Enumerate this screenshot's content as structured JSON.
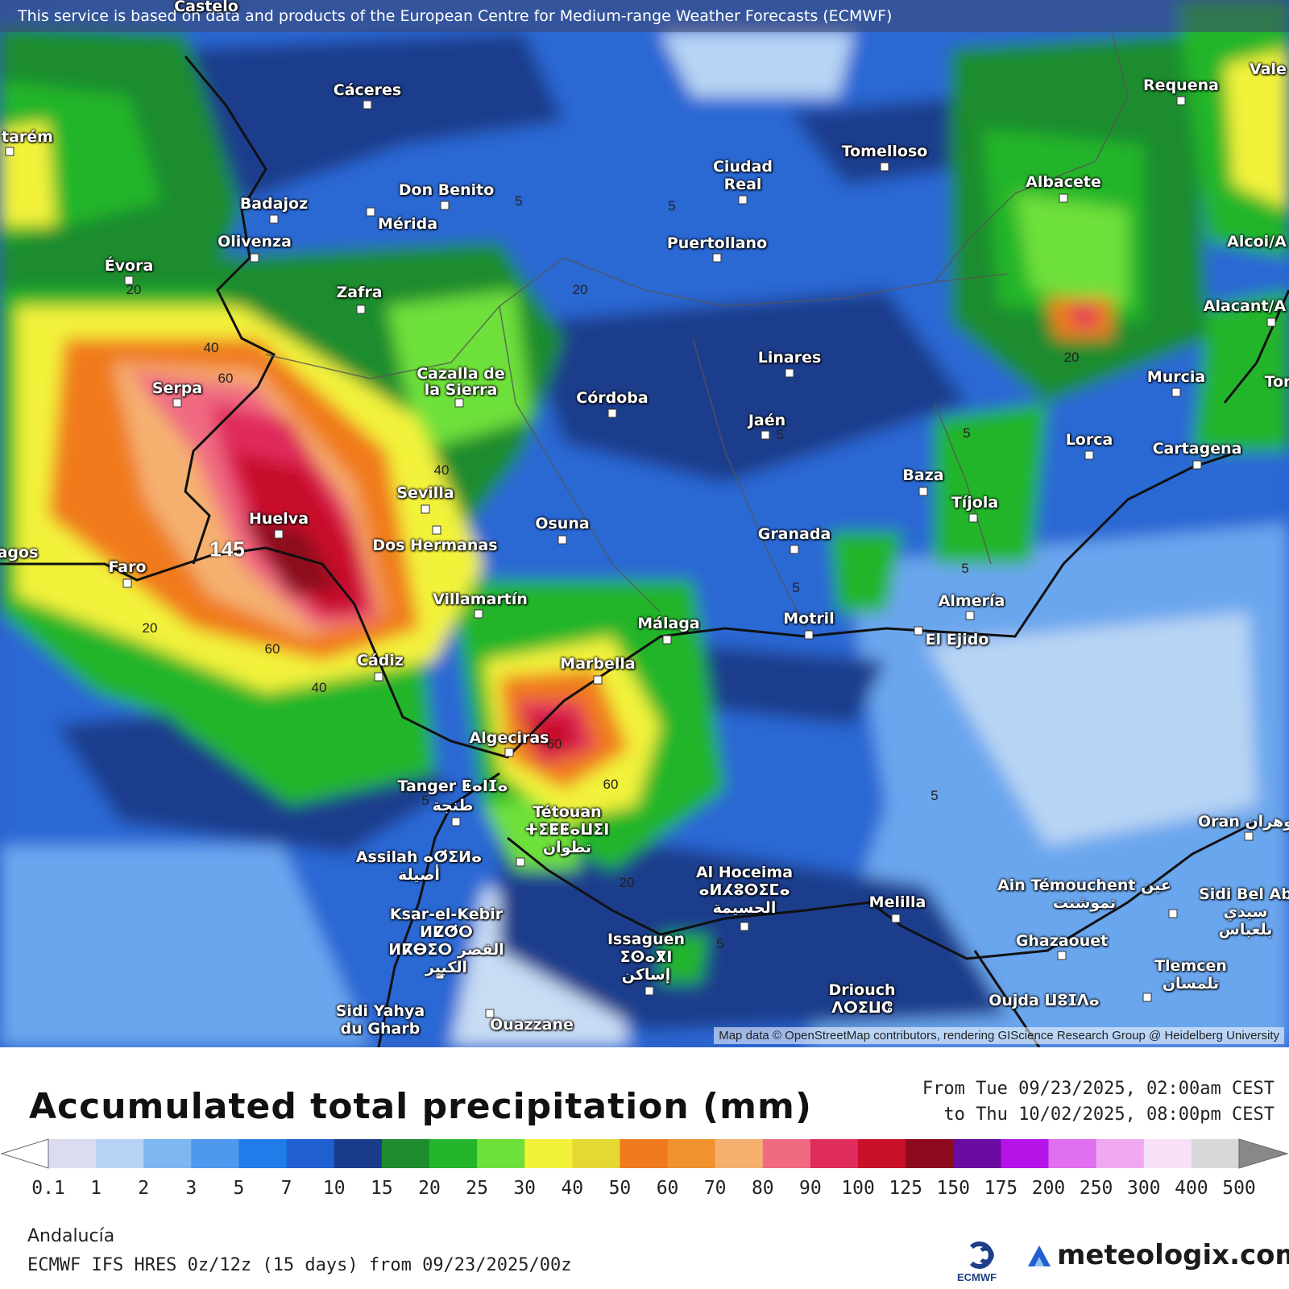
{
  "map": {
    "attribution_top": "This service is based on data and products of the European Centre for Medium-range Weather Forecasts (ECMWF)",
    "attribution_bottom": "Map data © OpenStreetMap contributors, rendering GIScience Research Group @ Heidelberg University",
    "cities": [
      {
        "name": "Cáceres"
      },
      {
        "name": "Badajoz"
      },
      {
        "name": "Don Benito"
      },
      {
        "name": "Mérida"
      },
      {
        "name": "Olivenza"
      },
      {
        "name": "Évora"
      },
      {
        "name": "Zafra"
      },
      {
        "name": "Ciudad Real"
      },
      {
        "name": "Tomelloso"
      },
      {
        "name": "Puertollano"
      },
      {
        "name": "Requena"
      },
      {
        "name": "Albacete"
      },
      {
        "name": "Alacant/A"
      },
      {
        "name": "Alcoi/A"
      },
      {
        "name": "Vale"
      },
      {
        "name": "Serpa"
      },
      {
        "name": "Cazalla de la Sierra"
      },
      {
        "name": "Córdoba"
      },
      {
        "name": "Linares"
      },
      {
        "name": "Jaén"
      },
      {
        "name": "Murcia"
      },
      {
        "name": "Lorca"
      },
      {
        "name": "Cartagena"
      },
      {
        "name": "Tor"
      },
      {
        "name": "Baza"
      },
      {
        "name": "Tíjola"
      },
      {
        "name": "Huelva"
      },
      {
        "name": "Sevilla"
      },
      {
        "name": "Dos Hermanas"
      },
      {
        "name": "Osuna"
      },
      {
        "name": "Granada"
      },
      {
        "name": "Faro"
      },
      {
        "name": "agos"
      },
      {
        "name": "Villamartín"
      },
      {
        "name": "Málaga"
      },
      {
        "name": "Motril"
      },
      {
        "name": "Almería"
      },
      {
        "name": "El Ejido"
      },
      {
        "name": "Cádiz"
      },
      {
        "name": "Marbella"
      },
      {
        "name": "Algeciras"
      },
      {
        "name": "Tanger ⵟⴰⵏⵊⴰ طنجة"
      },
      {
        "name": "Tétouan ⵜⵉⵟⵟⴰⵡⵉⵏ تطوان"
      },
      {
        "name": "Assilah ⴰⵚⵉⵍⴰ أصيلة"
      },
      {
        "name": "Al Hoceima ⴰⵍⵃⵓⵙⵉⵎⴰ الحسيمة"
      },
      {
        "name": "Melilla"
      },
      {
        "name": "Ain Témouchent عين تموشنت"
      },
      {
        "name": "Sidi Bel Ab سيدي بلعباس"
      },
      {
        "name": "Oran وهران"
      },
      {
        "name": "Ksar-el-Kebir ⵍⵇⵚⵔ ⵍⴽⴱⵉⵔ القصر الكبير"
      },
      {
        "name": "Issaguen ⵉⵙⴰⴳⵏ إساكن"
      },
      {
        "name": "Ghazaouet"
      },
      {
        "name": "Tlemcen تلمسان"
      },
      {
        "name": "Driouch ⴷⵔⵉⵡⵛ"
      },
      {
        "name": "Oujda ⵡⵓⵊⴷⴰ"
      },
      {
        "name": "Sidi Yahya du Gharb"
      },
      {
        "name": "Ouazzane"
      },
      {
        "name": "tarém"
      },
      {
        "name": "Castelo"
      }
    ],
    "contour_labels": [
      "5",
      "5",
      "5",
      "5",
      "5",
      "5",
      "5",
      "5",
      "5",
      "20",
      "20",
      "20",
      "20",
      "20",
      "40",
      "40",
      "40",
      "60",
      "60",
      "60",
      "60",
      "145"
    ]
  },
  "legend": {
    "title": "Accumulated total precipitation (mm)",
    "period_from": "From Tue 09/23/2025, 02:00am CEST",
    "period_to": "to Thu 10/02/2025, 08:00pm CEST",
    "levels": [
      "0.1",
      "1",
      "2",
      "3",
      "5",
      "7",
      "10",
      "15",
      "20",
      "25",
      "30",
      "40",
      "50",
      "60",
      "70",
      "80",
      "90",
      "100",
      "125",
      "150",
      "175",
      "200",
      "250",
      "300",
      "400",
      "500"
    ],
    "colors": [
      "#dcdcf0",
      "#b6d3f5",
      "#7db6f0",
      "#4e98ee",
      "#1f7ce8",
      "#1f5fcf",
      "#1a3c8c",
      "#1e8c2e",
      "#24b52c",
      "#6ee03a",
      "#f2f23a",
      "#e6d832",
      "#f07a1e",
      "#f0922e",
      "#f5b070",
      "#f06a82",
      "#e02c5c",
      "#c8102a",
      "#8c0a1e",
      "#6a0aa0",
      "#b414e8",
      "#e070f0",
      "#f0a8f0",
      "#f8e0f8",
      "#d8d8d8"
    ],
    "region": "Andalucía",
    "model_run": "ECMWF IFS HRES 0z/12z (15 days) from 09/23/2025/00z",
    "ecmwf_label": "ECMWF",
    "brand": "meteologix.com"
  }
}
